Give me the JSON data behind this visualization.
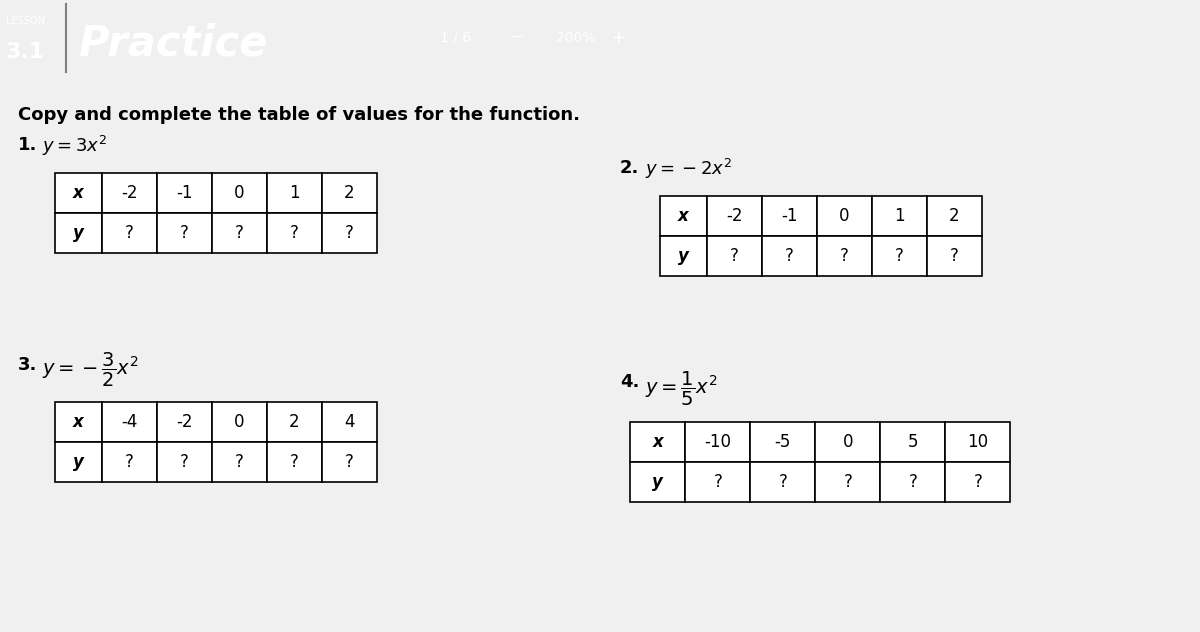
{
  "bg_color": "#f0f0f0",
  "header_bg": "#2c2c2c",
  "header_text_color": "#ffffff",
  "lesson_label": "LESSON",
  "lesson_number": "3.1",
  "page_label": "1 / 6",
  "zoom_label": "200%",
  "title": "Practice",
  "instruction": "Copy and complete the table of values for the function.",
  "content_bg": "#ffffff",
  "table_border_color": "#000000",
  "problems": [
    {
      "number": "1.",
      "formula": "$y = 3x^2$",
      "x_vals": [
        "-2",
        "-1",
        "0",
        "1",
        "2"
      ],
      "y_vals": [
        "?",
        "?",
        "?",
        "?",
        "?"
      ]
    },
    {
      "number": "2.",
      "formula": "$y = -2x^2$",
      "x_vals": [
        "-2",
        "-1",
        "0",
        "1",
        "2"
      ],
      "y_vals": [
        "?",
        "?",
        "?",
        "?",
        "?"
      ]
    },
    {
      "number": "3.",
      "formula": "$y = -\\dfrac{3}{2}x^2$",
      "x_vals": [
        "-4",
        "-2",
        "0",
        "2",
        "4"
      ],
      "y_vals": [
        "?",
        "?",
        "?",
        "?",
        "?"
      ]
    },
    {
      "number": "4.",
      "formula": "$y = \\dfrac{1}{5}x^2$",
      "x_vals": [
        "-10",
        "-5",
        "0",
        "5",
        "10"
      ],
      "y_vals": [
        "?",
        "?",
        "?",
        "?",
        "?"
      ]
    }
  ]
}
